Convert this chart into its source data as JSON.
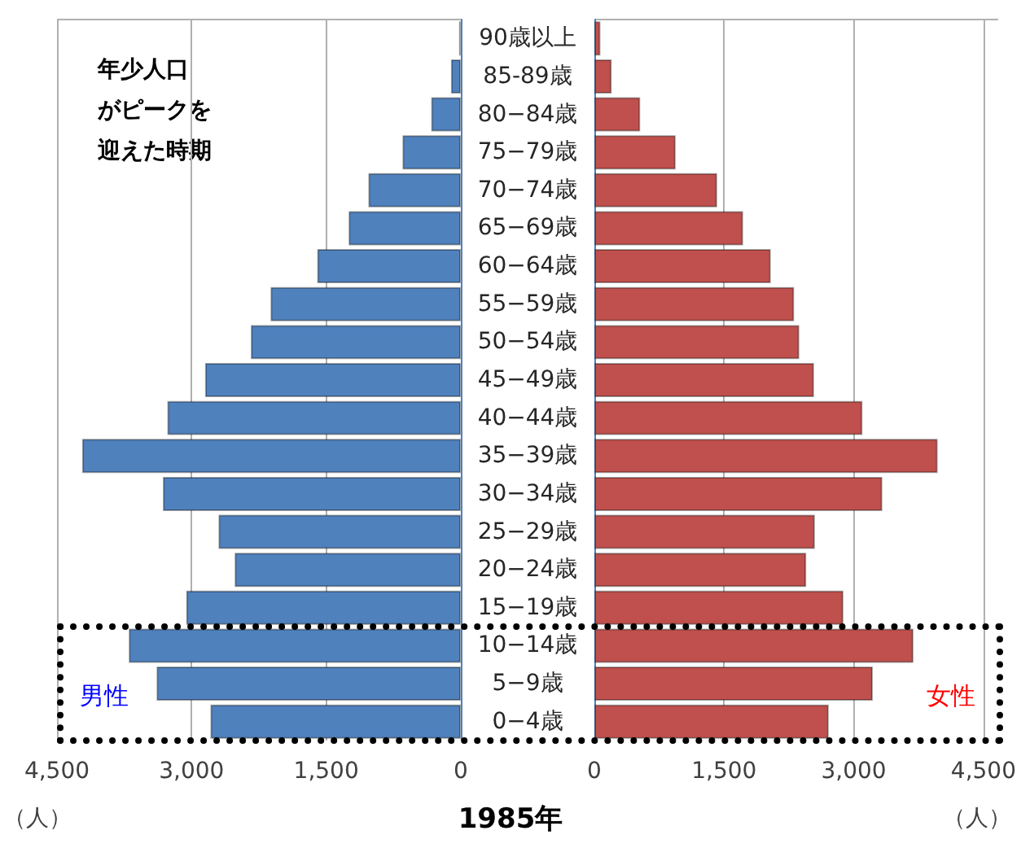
{
  "chart_data": [
    {
      "type": "bar",
      "orientation": "horizontal",
      "title": "1985年",
      "xlabel": "（人）",
      "categories": [
        "90歳以上",
        "85-89歳",
        "80−84歳",
        "75−79歳",
        "70−74歳",
        "65−69歳",
        "60−64歳",
        "55−59歳",
        "50−54歳",
        "45−49歳",
        "40−44歳",
        "35−39歳",
        "30−34歳",
        "25−29歳",
        "20−24歳",
        "15−19歳",
        "10−14歳",
        "5−9歳",
        "0−4歳"
      ],
      "series": [
        {
          "name": "男性",
          "color": "#4f81bd",
          "values": [
            20,
            110,
            330,
            650,
            1030,
            1250,
            1600,
            2120,
            2340,
            2850,
            3270,
            4220,
            3320,
            2700,
            2520,
            3060,
            3700,
            3390,
            2790
          ]
        }
      ],
      "xlim": [
        4500,
        0
      ],
      "xticks": [
        {
          "value": 4500,
          "label": "4,500"
        },
        {
          "value": 3000,
          "label": "3,000"
        },
        {
          "value": 1500,
          "label": "1,500"
        },
        0
      ],
      "grid": "x",
      "annotations": [
        "年少人口",
        "がピークを",
        "迎えた時期"
      ]
    },
    {
      "type": "bar",
      "orientation": "horizontal",
      "xlabel": "（人）",
      "series": [
        {
          "name": "女性",
          "color": "#c0504d",
          "values": [
            70,
            200,
            530,
            940,
            1420,
            1720,
            2040,
            2310,
            2370,
            2540,
            3100,
            3970,
            3330,
            2550,
            2450,
            2880,
            3690,
            3220,
            2710
          ]
        }
      ],
      "xlim": [
        0,
        4500
      ],
      "xticks": [
        0,
        {
          "value": 1500,
          "label": "1,500"
        },
        {
          "value": 3000,
          "label": "3,000"
        },
        {
          "value": 4500,
          "label": "4,500"
        }
      ],
      "grid": "x",
      "tick_labels": "x"
    }
  ]
}
